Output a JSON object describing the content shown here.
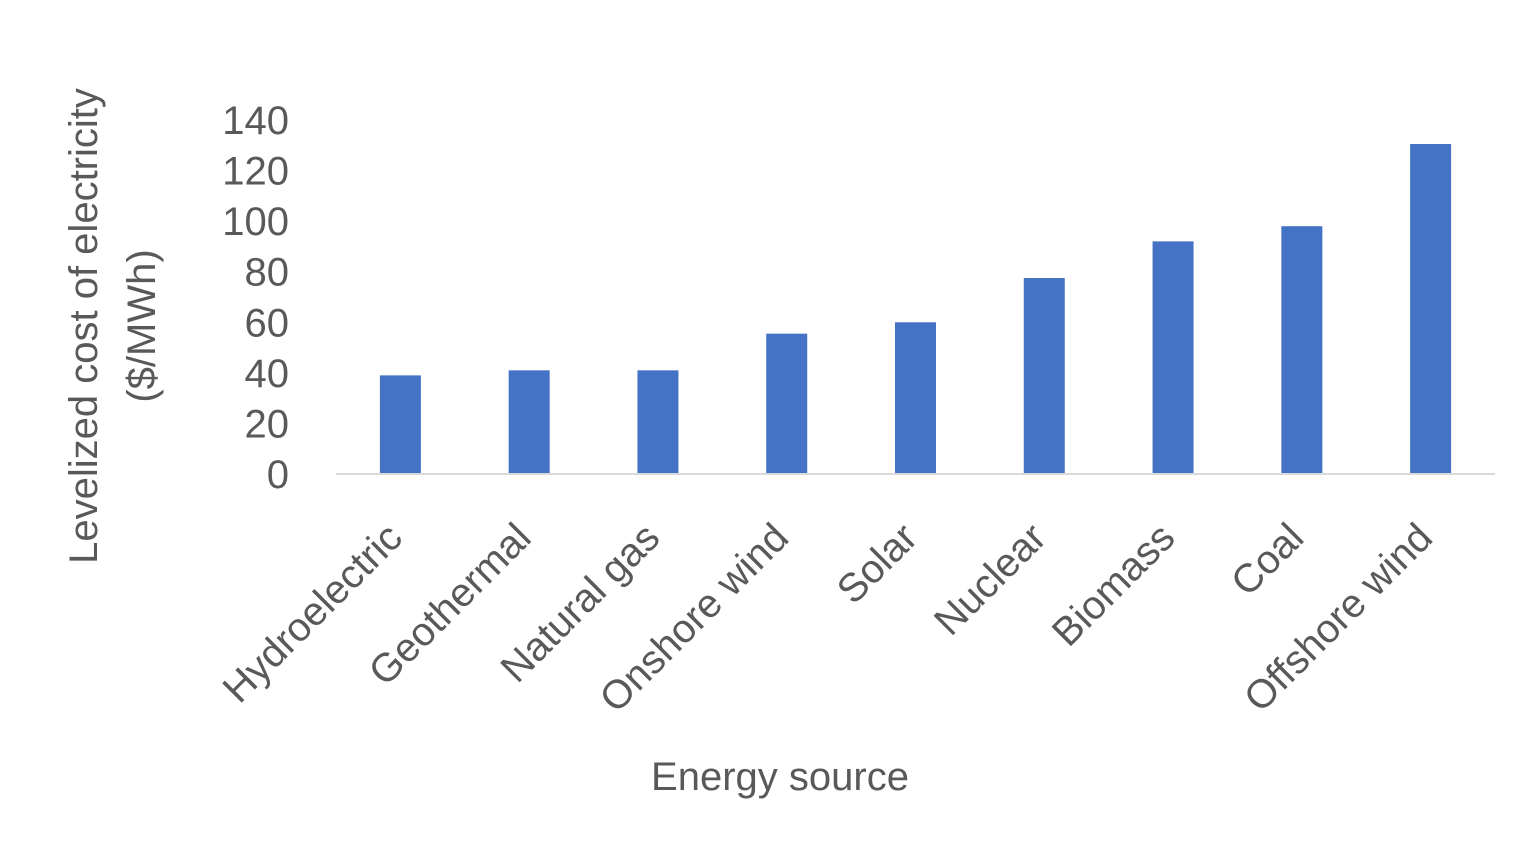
{
  "chart_data": {
    "type": "bar",
    "title": "",
    "xlabel": "Energy source",
    "ylabel_lines": [
      "Levelized cost of electricity",
      "($/MWh)"
    ],
    "categories": [
      "Hydroelectric",
      "Geothermal",
      "Natural gas",
      "Onshore wind",
      "Solar",
      "Nuclear",
      "Biomass",
      "Coal",
      "Offshore wind"
    ],
    "series": [
      {
        "values": [
          39,
          41,
          41,
          55.5,
          60,
          77.5,
          92,
          98,
          130.5
        ]
      }
    ],
    "ylim": [
      0,
      140
    ],
    "yticks": [
      0,
      20,
      40,
      60,
      80,
      100,
      120,
      140
    ],
    "grid": false,
    "legend": "none",
    "bar_color": "#4472C4",
    "axis_line_color": "#D9D9D9",
    "text_color": "#595959"
  }
}
